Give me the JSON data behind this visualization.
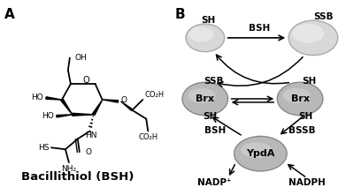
{
  "panel_a_label": "A",
  "panel_b_label": "B",
  "molecule_name": "Bacillithiol (BSH)",
  "bg_color": "#ffffff",
  "text_color": "#000000",
  "line_color": "#000000",
  "font_size_label": 11,
  "font_size_text": 8,
  "font_size_mol": 9.5,
  "font_size_sub": 7,
  "oval_edge": "#888888"
}
